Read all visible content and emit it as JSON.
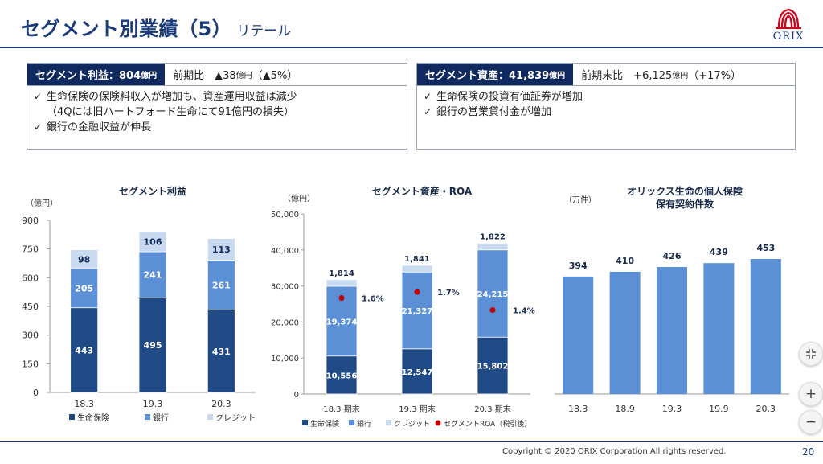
{
  "header": {
    "title": "セグメント別業績（5）",
    "subtitle": "リテール",
    "logo_text": "ORIX"
  },
  "left_box": {
    "label": "セグメント利益：804",
    "label_unit": "億円",
    "cmp_prefix": "前期比　▲38",
    "cmp_unit": "億円",
    "cmp_suffix": "（▲5%）",
    "bullets": [
      "生命保険の保険料収入が増加も、資産運用収益は減少",
      "（4Qには旧ハートフォード生命にて91億円の損失）",
      "銀行の金融収益が伸長"
    ]
  },
  "right_box": {
    "label": "セグメント資産：41,839",
    "label_unit": "億円",
    "cmp_prefix": "前期末比　+6,125",
    "cmp_unit": "億円",
    "cmp_suffix": "（+17%）",
    "bullets": [
      "生命保険の投資有価証券が増加",
      "銀行の営業貸付金が増加"
    ]
  },
  "colors": {
    "life": "#1f4a86",
    "bank": "#5b8fd6",
    "credit": "#c8d9f0",
    "roa": "#c00000",
    "contracts": "#5b8fd6",
    "navy": "#10295e"
  },
  "chart_data": [
    {
      "type": "bar",
      "stacked": true,
      "title": "セグメント利益",
      "ylabel": "（億円）",
      "categories": [
        "18.3",
        "19.3",
        "20.3"
      ],
      "ylim": [
        0,
        900
      ],
      "yticks": [
        0,
        150,
        300,
        450,
        600,
        750,
        900
      ],
      "ytick_labels": [
        "0",
        "150",
        "300",
        "450",
        "600",
        "750",
        "900"
      ],
      "series": [
        {
          "name": "生命保険",
          "values": [
            443,
            495,
            431
          ],
          "labels": [
            "443",
            "495",
            "431"
          ]
        },
        {
          "name": "銀行",
          "values": [
            205,
            241,
            261
          ],
          "labels": [
            "205",
            "241",
            "261"
          ]
        },
        {
          "name": "クレジット",
          "values": [
            98,
            106,
            113
          ],
          "labels": [
            "98",
            "106",
            "113"
          ]
        }
      ],
      "legend": "bottom"
    },
    {
      "type": "bar",
      "stacked": true,
      "title": "セグメント資産・ROA",
      "ylabel": "（億円）",
      "categories": [
        "18.3 期末",
        "19.3 期末",
        "20.3 期末"
      ],
      "ylim": [
        0,
        50000
      ],
      "yticks": [
        0,
        10000,
        20000,
        30000,
        40000,
        50000
      ],
      "ytick_labels": [
        "0",
        "10,000",
        "20,000",
        "30,000",
        "40,000",
        "50,000"
      ],
      "series": [
        {
          "name": "生命保険",
          "values": [
            10556,
            12547,
            15802
          ],
          "labels": [
            "10,556",
            "12,547",
            "15,802"
          ]
        },
        {
          "name": "銀行",
          "values": [
            19374,
            21327,
            24215
          ],
          "labels": [
            "19,374",
            "21,327",
            "24,215"
          ]
        },
        {
          "name": "クレジット",
          "values": [
            1814,
            1841,
            1822
          ],
          "labels": [
            "1,814",
            "1,841",
            "1,822"
          ]
        }
      ],
      "roa": {
        "name": "セグメントROA（税引後）",
        "values": [
          1.6,
          1.7,
          1.4
        ],
        "labels": [
          "1.6%",
          "1.7%",
          "1.4%"
        ]
      },
      "legend": "bottom"
    },
    {
      "type": "bar",
      "title": "オリックス生命の個人保険",
      "title2": "保有契約件数",
      "ylabel": "（万件）",
      "categories": [
        "18.3",
        "18.9",
        "19.3",
        "19.9",
        "20.3"
      ],
      "values": [
        394,
        410,
        426,
        439,
        453
      ],
      "labels": [
        "394",
        "410",
        "426",
        "439",
        "453"
      ]
    }
  ],
  "footer": {
    "copyright": "Copyright © 2020 ORIX Corporation  All rights reserved.",
    "page": "20"
  },
  "zoom": {
    "fit_icon": "fit-screen-icon",
    "plus": "+",
    "minus": "−"
  }
}
